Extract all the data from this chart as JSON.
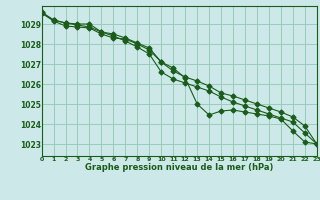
{
  "title": "Graphe pression niveau de la mer (hPa)",
  "bg_color": "#cce8e8",
  "grid_color": "#99ccbb",
  "line_color": "#1a5c1a",
  "x_ticks": [
    0,
    1,
    2,
    3,
    4,
    5,
    6,
    7,
    8,
    9,
    10,
    11,
    12,
    13,
    14,
    15,
    16,
    17,
    18,
    19,
    20,
    21,
    22,
    23
  ],
  "y_ticks": [
    1023,
    1024,
    1025,
    1026,
    1027,
    1028,
    1029
  ],
  "ylim": [
    1022.4,
    1029.9
  ],
  "xlim": [
    0,
    23
  ],
  "series1": [
    1029.55,
    1029.2,
    1029.05,
    1029.0,
    1029.0,
    1028.6,
    1028.5,
    1028.3,
    1028.05,
    1027.8,
    1027.1,
    1026.8,
    1026.3,
    1025.0,
    1024.45,
    1024.65,
    1024.7,
    1024.6,
    1024.5,
    1024.4,
    1024.25,
    1023.65,
    1023.1,
    1023.0
  ],
  "series2": [
    1029.6,
    1029.2,
    1029.05,
    1028.95,
    1028.85,
    1028.6,
    1028.4,
    1028.15,
    1027.85,
    1027.5,
    1026.6,
    1026.25,
    1026.05,
    1025.85,
    1025.65,
    1025.35,
    1025.1,
    1024.9,
    1024.7,
    1024.5,
    1024.3,
    1024.1,
    1023.55,
    1023.0
  ],
  "series3": [
    1029.55,
    1029.15,
    1028.9,
    1028.85,
    1028.8,
    1028.5,
    1028.3,
    1028.25,
    1028.0,
    1027.7,
    1027.1,
    1026.65,
    1026.35,
    1026.15,
    1025.9,
    1025.55,
    1025.4,
    1025.2,
    1025.0,
    1024.8,
    1024.6,
    1024.35,
    1023.9,
    1023.0
  ]
}
